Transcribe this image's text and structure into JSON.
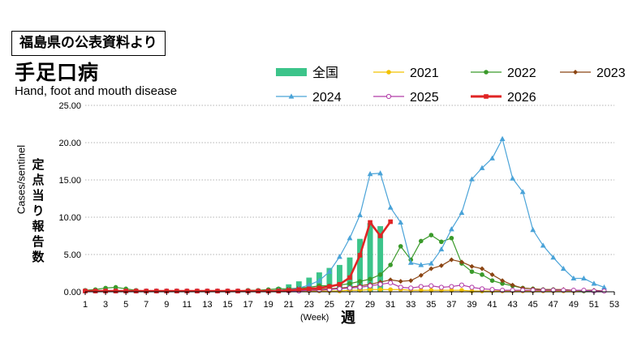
{
  "source_label": "福島県の公表資料より",
  "chart_data": {
    "type": "line",
    "title": "手足口病",
    "subtitle": "Hand, foot and mouth disease",
    "ylabel": "Cases/sentinel",
    "ylabel_jp": "定点当り報告数",
    "xlabel": "(Week)",
    "xlabel_jp": "週",
    "ylim": [
      0,
      25
    ],
    "yticks": [
      "0.00",
      "5.00",
      "10.00",
      "15.00",
      "20.00",
      "25.00"
    ],
    "xlim": [
      1,
      53
    ],
    "xticks": [
      "1",
      "3",
      "5",
      "7",
      "9",
      "11",
      "13",
      "15",
      "17",
      "19",
      "21",
      "23",
      "25",
      "27",
      "29",
      "31",
      "33",
      "35",
      "37",
      "39",
      "41",
      "43",
      "45",
      "47",
      "49",
      "51",
      "53"
    ],
    "grid": true,
    "legend_position": "top",
    "bar_series": {
      "name": "全国",
      "color": "#3cc48a",
      "x": [
        20,
        21,
        22,
        23,
        24,
        25,
        26,
        27,
        28,
        29,
        30
      ],
      "values": [
        0.6,
        1.0,
        1.4,
        1.9,
        2.6,
        3.2,
        3.6,
        4.6,
        7.1,
        9.2,
        8.8
      ]
    },
    "series": [
      {
        "name": "2021",
        "color": "#f2c200",
        "marker": "circle",
        "x": [
          1,
          2,
          3,
          4,
          5,
          6,
          7,
          8,
          9,
          10,
          11,
          12,
          13,
          14,
          15,
          16,
          17,
          18,
          19,
          20,
          21,
          22,
          23,
          24,
          25,
          26,
          27,
          28,
          29,
          30,
          31,
          32,
          33,
          34,
          35,
          36,
          37,
          38,
          39,
          40,
          41,
          42,
          43,
          44,
          45,
          46,
          47,
          48,
          49,
          50,
          51,
          52
        ],
        "values": [
          0.1,
          0.1,
          0.1,
          0.1,
          0.1,
          0.1,
          0.1,
          0.1,
          0.1,
          0.1,
          0.1,
          0.1,
          0.1,
          0.1,
          0.1,
          0.1,
          0.1,
          0.1,
          0.1,
          0.1,
          0.1,
          0.1,
          0.1,
          0.1,
          0.1,
          0.1,
          0.2,
          0.2,
          0.3,
          0.3,
          0.3,
          0.3,
          0.2,
          0.2,
          0.2,
          0.2,
          0.2,
          0.2,
          0.1,
          0.1,
          0.1,
          0.1,
          0.1,
          0.1,
          0.1,
          0.1,
          0.1,
          0.1,
          0.1,
          0.1,
          0.1,
          0.1
        ]
      },
      {
        "name": "2022",
        "color": "#3a9a2a",
        "marker": "circle",
        "x": [
          1,
          2,
          3,
          4,
          5,
          6,
          7,
          8,
          9,
          10,
          11,
          12,
          13,
          14,
          15,
          16,
          17,
          18,
          19,
          20,
          21,
          22,
          23,
          24,
          25,
          26,
          27,
          28,
          29,
          30,
          31,
          32,
          33,
          34,
          35,
          36,
          37,
          38,
          39,
          40,
          41,
          42,
          43,
          44,
          45,
          46,
          47,
          48,
          49,
          50,
          51,
          52
        ],
        "values": [
          0.2,
          0.3,
          0.5,
          0.6,
          0.4,
          0.2,
          0.1,
          0.1,
          0.1,
          0.1,
          0.1,
          0.1,
          0.1,
          0.1,
          0.1,
          0.1,
          0.2,
          0.2,
          0.3,
          0.4,
          0.4,
          0.5,
          0.6,
          0.8,
          0.8,
          0.9,
          1.1,
          1.4,
          1.7,
          2.3,
          3.6,
          6.1,
          4.3,
          6.8,
          7.6,
          6.7,
          7.2,
          3.8,
          2.7,
          2.3,
          1.5,
          1.1,
          0.8,
          0.5,
          0.4,
          0.3,
          0.3,
          0.2,
          0.2,
          0.1,
          0.1,
          0.1
        ]
      },
      {
        "name": "2023",
        "color": "#8b4513",
        "marker": "diamond",
        "x": [
          1,
          2,
          3,
          4,
          5,
          6,
          7,
          8,
          9,
          10,
          11,
          12,
          13,
          14,
          15,
          16,
          17,
          18,
          19,
          20,
          21,
          22,
          23,
          24,
          25,
          26,
          27,
          28,
          29,
          30,
          31,
          32,
          33,
          34,
          35,
          36,
          37,
          38,
          39,
          40,
          41,
          42,
          43,
          44,
          45,
          46,
          47,
          48,
          49,
          50,
          51,
          52
        ],
        "values": [
          0.1,
          0.1,
          0.1,
          0.1,
          0.1,
          0.1,
          0.1,
          0.1,
          0.1,
          0.1,
          0.1,
          0.1,
          0.1,
          0.1,
          0.1,
          0.1,
          0.1,
          0.1,
          0.1,
          0.1,
          0.2,
          0.2,
          0.3,
          0.3,
          0.4,
          0.5,
          0.6,
          0.8,
          1.0,
          1.3,
          1.6,
          1.4,
          1.5,
          2.2,
          3.1,
          3.5,
          4.3,
          4.0,
          3.4,
          3.1,
          2.3,
          1.5,
          0.9,
          0.5,
          0.4,
          0.3,
          0.3,
          0.3,
          0.2,
          0.2,
          0.2,
          0.1
        ]
      },
      {
        "name": "2024",
        "color": "#4aa3d8",
        "marker": "triangle",
        "x": [
          1,
          2,
          3,
          4,
          5,
          6,
          7,
          8,
          9,
          10,
          11,
          12,
          13,
          14,
          15,
          16,
          17,
          18,
          19,
          20,
          21,
          22,
          23,
          24,
          25,
          26,
          27,
          28,
          29,
          30,
          31,
          32,
          33,
          34,
          35,
          36,
          37,
          38,
          39,
          40,
          41,
          42,
          43,
          44,
          45,
          46,
          47,
          48,
          49,
          50,
          51,
          52
        ],
        "values": [
          0.1,
          0.1,
          0.1,
          0.1,
          0.1,
          0.1,
          0.1,
          0.1,
          0.1,
          0.1,
          0.1,
          0.1,
          0.1,
          0.1,
          0.1,
          0.1,
          0.1,
          0.1,
          0.1,
          0.2,
          0.3,
          0.5,
          0.9,
          1.5,
          2.7,
          4.7,
          7.2,
          10.3,
          15.8,
          15.9,
          11.3,
          9.3,
          3.9,
          3.6,
          3.8,
          5.7,
          8.4,
          10.6,
          15.1,
          16.6,
          17.9,
          20.5,
          15.2,
          13.4,
          8.3,
          6.2,
          4.6,
          3.1,
          1.8,
          1.8,
          1.1,
          0.6
        ]
      },
      {
        "name": "2025",
        "color": "#b23ca8",
        "marker": "circle-open",
        "x": [
          1,
          2,
          3,
          4,
          5,
          6,
          7,
          8,
          9,
          10,
          11,
          12,
          13,
          14,
          15,
          16,
          17,
          18,
          19,
          20,
          21,
          22,
          23,
          24,
          25,
          26,
          27,
          28,
          29,
          30,
          31,
          32,
          33,
          34,
          35,
          36,
          37,
          38,
          39,
          40,
          41,
          42,
          43,
          44,
          45,
          46,
          47,
          48,
          49,
          50,
          51,
          52
        ],
        "values": [
          0.1,
          0.1,
          0.1,
          0.1,
          0.1,
          0.1,
          0.1,
          0.1,
          0.1,
          0.1,
          0.1,
          0.1,
          0.1,
          0.1,
          0.1,
          0.1,
          0.1,
          0.1,
          0.1,
          0.1,
          0.1,
          0.1,
          0.2,
          0.2,
          0.3,
          0.4,
          0.5,
          0.6,
          0.8,
          1.0,
          1.2,
          0.6,
          0.5,
          0.7,
          0.8,
          0.6,
          0.7,
          0.9,
          0.6,
          0.4,
          0.3,
          0.2,
          0.2,
          0.2,
          0.2,
          0.2,
          0.2,
          0.2,
          0.2,
          0.2,
          0.1,
          0.1
        ]
      },
      {
        "name": "2026",
        "color": "#e02424",
        "marker": "square",
        "x": [
          1,
          2,
          3,
          4,
          5,
          6,
          7,
          8,
          9,
          10,
          11,
          12,
          13,
          14,
          15,
          16,
          17,
          18,
          19,
          20,
          21,
          22,
          23,
          24,
          25,
          26,
          27,
          28,
          29,
          30,
          31
        ],
        "values": [
          0.1,
          0.1,
          0.1,
          0.1,
          0.1,
          0.1,
          0.1,
          0.1,
          0.1,
          0.1,
          0.1,
          0.1,
          0.1,
          0.1,
          0.1,
          0.1,
          0.1,
          0.1,
          0.1,
          0.1,
          0.2,
          0.3,
          0.4,
          0.5,
          0.7,
          1.0,
          1.9,
          4.9,
          9.3,
          7.5,
          9.4
        ]
      }
    ]
  }
}
